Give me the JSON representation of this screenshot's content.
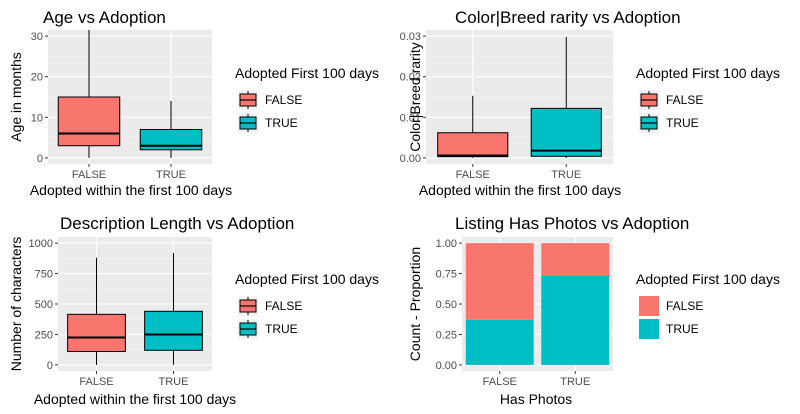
{
  "colors": {
    "false_fill": "#F8766D",
    "true_fill": "#00BFC4",
    "panel_bg": "#EBEBEB",
    "grid_major": "#FFFFFF",
    "grid_minor": "#F5F5F5",
    "legend_key_bg": "#F2F2F2"
  },
  "chart_data": [
    {
      "type": "box",
      "title": "Age vs Adoption",
      "xlabel": "Adopted within the first 100 days",
      "ylabel": "Age in months",
      "categories": [
        "FALSE",
        "TRUE"
      ],
      "ylim": [
        -1.5,
        31.5
      ],
      "yticks": [
        0,
        10,
        20,
        30
      ],
      "ytick_labels": [
        "0",
        "10",
        "20",
        "30"
      ],
      "boxes": [
        {
          "category": "FALSE",
          "whisker_low": 0,
          "q1": 3,
          "median": 6,
          "q3": 15,
          "whisker_high": 31.5
        },
        {
          "category": "TRUE",
          "whisker_low": 0,
          "q1": 2,
          "median": 3,
          "q3": 7,
          "whisker_high": 14
        }
      ],
      "legend": {
        "title": "Adopted First 100 days",
        "entries": [
          "FALSE",
          "TRUE"
        ],
        "key_style": "box"
      }
    },
    {
      "type": "box",
      "title": "Color|Breed rarity vs Adoption",
      "xlabel": "Adopted within the first 100 days",
      "ylabel": "Color|Breed rarity",
      "categories": [
        "FALSE",
        "TRUE"
      ],
      "ylim": [
        -0.0015,
        0.0315
      ],
      "yticks": [
        0,
        0.01,
        0.02,
        0.03
      ],
      "ytick_labels": [
        "0.00",
        "0.01",
        "0.02",
        "0.03"
      ],
      "boxes": [
        {
          "category": "FALSE",
          "whisker_low": 0,
          "q1": 0.0003,
          "median": 0.0006,
          "q3": 0.0062,
          "whisker_high": 0.0153
        },
        {
          "category": "TRUE",
          "whisker_low": 0,
          "q1": 0.0004,
          "median": 0.0018,
          "q3": 0.0122,
          "whisker_high": 0.0298
        }
      ],
      "legend": {
        "title": "Adopted First 100 days",
        "entries": [
          "FALSE",
          "TRUE"
        ],
        "key_style": "box"
      }
    },
    {
      "type": "box",
      "title": "Description Length vs Adoption",
      "xlabel": "Adopted within the first 100 days",
      "ylabel": "Number of characters",
      "categories": [
        "FALSE",
        "TRUE"
      ],
      "ylim": [
        -50,
        1050
      ],
      "yticks": [
        0,
        250,
        500,
        750,
        1000
      ],
      "ytick_labels": [
        "0",
        "250",
        "500",
        "750",
        "1000"
      ],
      "boxes": [
        {
          "category": "FALSE",
          "whisker_low": 0,
          "q1": 110,
          "median": 225,
          "q3": 415,
          "whisker_high": 880
        },
        {
          "category": "TRUE",
          "whisker_low": 0,
          "q1": 120,
          "median": 250,
          "q3": 440,
          "whisker_high": 920
        }
      ],
      "legend": {
        "title": "Adopted First 100 days",
        "entries": [
          "FALSE",
          "TRUE"
        ],
        "key_style": "box"
      }
    },
    {
      "type": "bar",
      "stacked": true,
      "title": "Listing Has Photos vs Adoption",
      "xlabel": "Has Photos",
      "ylabel": "Count - Proportion",
      "categories": [
        "FALSE",
        "TRUE"
      ],
      "ylim": [
        -0.05,
        1.05
      ],
      "yticks": [
        0,
        0.25,
        0.5,
        0.75,
        1.0
      ],
      "ytick_labels": [
        "0.00",
        "0.25",
        "0.50",
        "0.75",
        "1.00"
      ],
      "series": [
        {
          "name": "TRUE",
          "values": [
            0.37,
            0.73
          ]
        },
        {
          "name": "FALSE",
          "values": [
            0.63,
            0.27
          ]
        }
      ],
      "legend": {
        "title": "Adopted First 100 days",
        "entries": [
          "FALSE",
          "TRUE"
        ],
        "key_style": "fill"
      }
    }
  ]
}
